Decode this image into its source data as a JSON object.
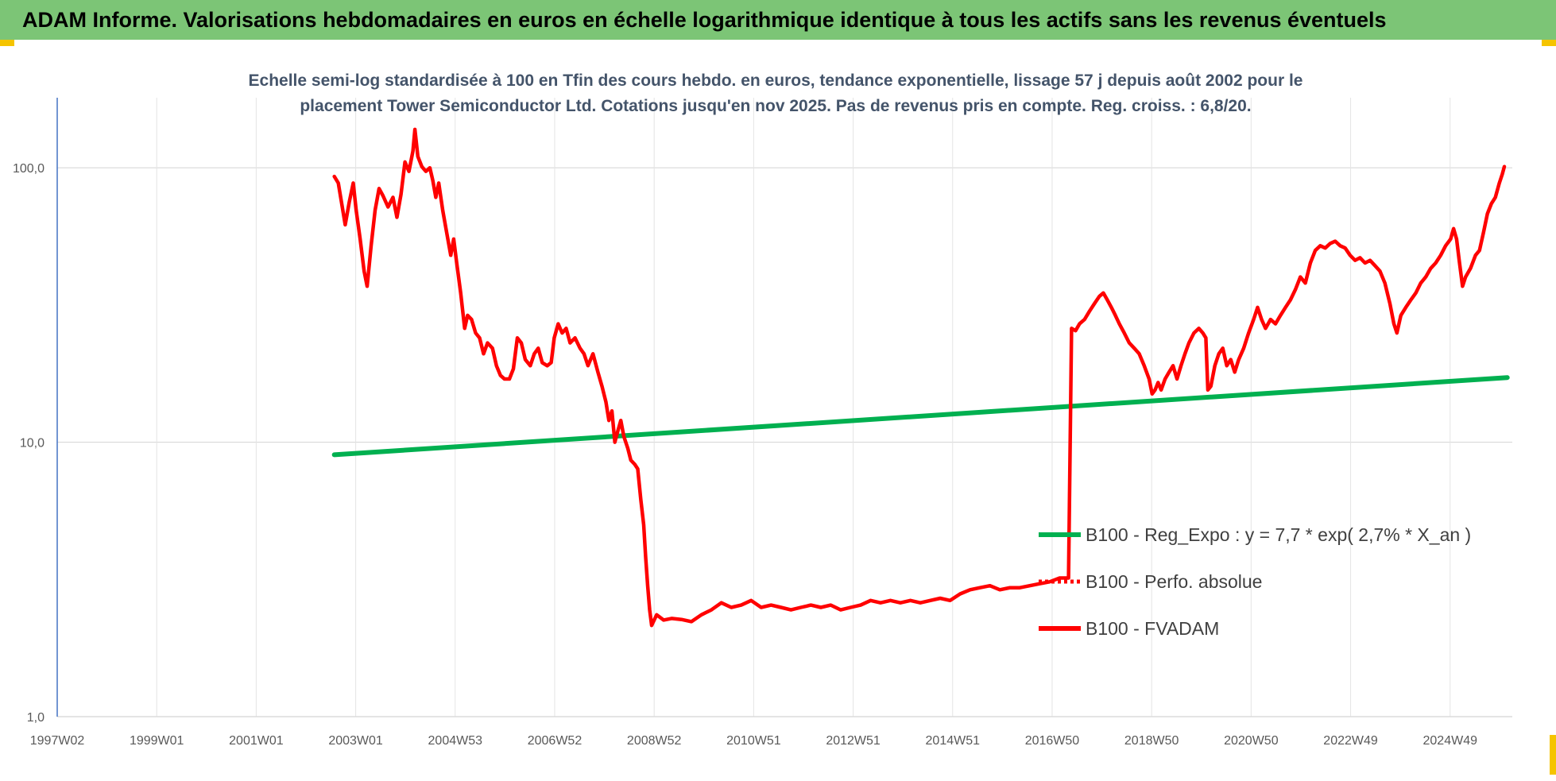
{
  "header": {
    "title": "ADAM Informe. Valorisations hebdomadaires en euros en échelle logarithmique identique à tous les actifs sans les revenus éventuels"
  },
  "colors": {
    "banner": "#7cc576",
    "accent_corner": "#f5c400",
    "series_fvadam": "#ff0000",
    "series_reg": "#00b050",
    "grid": "#d9d9d9",
    "axis": "#4472c4"
  },
  "chart_data": {
    "type": "line",
    "title_lines": [
      "Echelle semi-log standardisée à 100 en Tfin des cours hebdo. en euros, tendance exponentielle, lissage 57 j depuis août 2002 pour le",
      "placement Tower Semiconductor Ltd. Cotations jusqu'en nov 2025. Pas de revenus pris en compte. Reg. croiss. : 6,8/20."
    ],
    "y_scale": "log",
    "ylim": [
      1,
      180
    ],
    "xlim": [
      1997.05,
      2026.3
    ],
    "y_ticks": [
      {
        "value": 1,
        "label": "1,0"
      },
      {
        "value": 10,
        "label": "10,0"
      },
      {
        "value": 100,
        "label": "100,0"
      }
    ],
    "x_ticks": [
      {
        "value": 1997.05,
        "label": "1997W02"
      },
      {
        "value": 1999.05,
        "label": "1999W01"
      },
      {
        "value": 2001.05,
        "label": "2001W01"
      },
      {
        "value": 2003.05,
        "label": "2003W01"
      },
      {
        "value": 2005.05,
        "label": "2004W53"
      },
      {
        "value": 2007.05,
        "label": "2006W52"
      },
      {
        "value": 2009.05,
        "label": "2008W52"
      },
      {
        "value": 2011.05,
        "label": "2010W51"
      },
      {
        "value": 2013.05,
        "label": "2012W51"
      },
      {
        "value": 2015.05,
        "label": "2014W51"
      },
      {
        "value": 2017.05,
        "label": "2016W50"
      },
      {
        "value": 2019.05,
        "label": "2018W50"
      },
      {
        "value": 2021.05,
        "label": "2020W50"
      },
      {
        "value": 2023.05,
        "label": "2022W49"
      },
      {
        "value": 2025.05,
        "label": "2024W49"
      }
    ],
    "grid": true,
    "legend_position": "center-right",
    "series": [
      {
        "name": "B100 - Reg_Expo : y = 7,7 * exp( 2,7% *  X_an )",
        "color": "#00b050",
        "style": "solid",
        "points": [
          [
            2002.62,
            9.0
          ],
          [
            2026.2,
            17.2
          ]
        ]
      },
      {
        "name": "B100 - Perfo. absolue",
        "color": "#ff0000",
        "style": "dotted",
        "points": []
      },
      {
        "name": "B100 - FVADAM",
        "color": "#ff0000",
        "style": "solid",
        "points": [
          [
            2002.62,
            93
          ],
          [
            2002.7,
            88
          ],
          [
            2002.78,
            72
          ],
          [
            2002.84,
            62
          ],
          [
            2002.92,
            75
          ],
          [
            2003.0,
            88
          ],
          [
            2003.06,
            70
          ],
          [
            2003.14,
            55
          ],
          [
            2003.22,
            42
          ],
          [
            2003.28,
            37
          ],
          [
            2003.36,
            52
          ],
          [
            2003.44,
            70
          ],
          [
            2003.52,
            84
          ],
          [
            2003.6,
            79
          ],
          [
            2003.7,
            72
          ],
          [
            2003.8,
            78
          ],
          [
            2003.88,
            66
          ],
          [
            2003.96,
            80
          ],
          [
            2004.04,
            105
          ],
          [
            2004.12,
            97
          ],
          [
            2004.2,
            115
          ],
          [
            2004.24,
            138
          ],
          [
            2004.3,
            110
          ],
          [
            2004.38,
            101
          ],
          [
            2004.46,
            97
          ],
          [
            2004.54,
            100
          ],
          [
            2004.6,
            90
          ],
          [
            2004.66,
            78
          ],
          [
            2004.72,
            88
          ],
          [
            2004.8,
            70
          ],
          [
            2004.88,
            58
          ],
          [
            2004.96,
            48
          ],
          [
            2005.02,
            55
          ],
          [
            2005.08,
            45
          ],
          [
            2005.16,
            35
          ],
          [
            2005.24,
            26
          ],
          [
            2005.3,
            29
          ],
          [
            2005.38,
            28
          ],
          [
            2005.46,
            25
          ],
          [
            2005.54,
            24
          ],
          [
            2005.62,
            21
          ],
          [
            2005.7,
            23
          ],
          [
            2005.8,
            22
          ],
          [
            2005.88,
            19
          ],
          [
            2005.96,
            17.5
          ],
          [
            2006.04,
            17
          ],
          [
            2006.14,
            17
          ],
          [
            2006.22,
            18.5
          ],
          [
            2006.3,
            24
          ],
          [
            2006.38,
            23
          ],
          [
            2006.46,
            20
          ],
          [
            2006.56,
            19
          ],
          [
            2006.64,
            21
          ],
          [
            2006.72,
            22
          ],
          [
            2006.8,
            19.5
          ],
          [
            2006.9,
            19
          ],
          [
            2006.98,
            19.5
          ],
          [
            2007.04,
            24
          ],
          [
            2007.12,
            27
          ],
          [
            2007.2,
            25
          ],
          [
            2007.28,
            26
          ],
          [
            2007.36,
            23
          ],
          [
            2007.46,
            24
          ],
          [
            2007.56,
            22
          ],
          [
            2007.64,
            21
          ],
          [
            2007.72,
            19
          ],
          [
            2007.82,
            21
          ],
          [
            2007.92,
            18
          ],
          [
            2008.0,
            16
          ],
          [
            2008.08,
            14
          ],
          [
            2008.14,
            12
          ],
          [
            2008.2,
            13
          ],
          [
            2008.26,
            10
          ],
          [
            2008.32,
            11
          ],
          [
            2008.38,
            12
          ],
          [
            2008.44,
            10.5
          ],
          [
            2008.52,
            9.5
          ],
          [
            2008.58,
            8.6
          ],
          [
            2008.66,
            8.3
          ],
          [
            2008.72,
            8.0
          ],
          [
            2008.78,
            6.2
          ],
          [
            2008.84,
            5.0
          ],
          [
            2008.88,
            3.8
          ],
          [
            2008.92,
            3.0
          ],
          [
            2008.96,
            2.45
          ],
          [
            2009.0,
            2.15
          ],
          [
            2009.1,
            2.35
          ],
          [
            2009.24,
            2.25
          ],
          [
            2009.4,
            2.28
          ],
          [
            2009.6,
            2.26
          ],
          [
            2009.8,
            2.22
          ],
          [
            2010.0,
            2.35
          ],
          [
            2010.2,
            2.45
          ],
          [
            2010.4,
            2.6
          ],
          [
            2010.6,
            2.5
          ],
          [
            2010.8,
            2.55
          ],
          [
            2011.0,
            2.65
          ],
          [
            2011.2,
            2.5
          ],
          [
            2011.4,
            2.55
          ],
          [
            2011.6,
            2.5
          ],
          [
            2011.8,
            2.45
          ],
          [
            2012.0,
            2.5
          ],
          [
            2012.2,
            2.55
          ],
          [
            2012.4,
            2.5
          ],
          [
            2012.6,
            2.55
          ],
          [
            2012.8,
            2.45
          ],
          [
            2013.0,
            2.5
          ],
          [
            2013.2,
            2.55
          ],
          [
            2013.4,
            2.65
          ],
          [
            2013.6,
            2.6
          ],
          [
            2013.8,
            2.65
          ],
          [
            2014.0,
            2.6
          ],
          [
            2014.2,
            2.65
          ],
          [
            2014.4,
            2.6
          ],
          [
            2014.6,
            2.65
          ],
          [
            2014.8,
            2.7
          ],
          [
            2015.0,
            2.65
          ],
          [
            2015.2,
            2.8
          ],
          [
            2015.4,
            2.9
          ],
          [
            2015.6,
            2.95
          ],
          [
            2015.8,
            3.0
          ],
          [
            2016.0,
            2.9
          ],
          [
            2016.2,
            2.95
          ],
          [
            2016.4,
            2.95
          ],
          [
            2016.6,
            3.0
          ],
          [
            2016.8,
            3.05
          ],
          [
            2017.0,
            3.1
          ],
          [
            2017.2,
            3.2
          ],
          [
            2017.38,
            3.2
          ],
          [
            2017.44,
            26
          ],
          [
            2017.52,
            25.5
          ],
          [
            2017.6,
            27
          ],
          [
            2017.7,
            28
          ],
          [
            2017.8,
            30
          ],
          [
            2017.9,
            32
          ],
          [
            2018.0,
            34
          ],
          [
            2018.08,
            35
          ],
          [
            2018.16,
            33
          ],
          [
            2018.24,
            31
          ],
          [
            2018.32,
            29
          ],
          [
            2018.4,
            27
          ],
          [
            2018.5,
            25
          ],
          [
            2018.6,
            23
          ],
          [
            2018.7,
            22
          ],
          [
            2018.8,
            21
          ],
          [
            2018.9,
            19
          ],
          [
            2019.0,
            17
          ],
          [
            2019.06,
            15
          ],
          [
            2019.12,
            15.5
          ],
          [
            2019.18,
            16.5
          ],
          [
            2019.24,
            15.5
          ],
          [
            2019.32,
            17
          ],
          [
            2019.4,
            18
          ],
          [
            2019.48,
            19
          ],
          [
            2019.56,
            17
          ],
          [
            2019.64,
            19
          ],
          [
            2019.72,
            21
          ],
          [
            2019.8,
            23
          ],
          [
            2019.9,
            25
          ],
          [
            2020.0,
            26
          ],
          [
            2020.08,
            25
          ],
          [
            2020.14,
            24
          ],
          [
            2020.18,
            15.5
          ],
          [
            2020.24,
            16
          ],
          [
            2020.32,
            19
          ],
          [
            2020.4,
            21
          ],
          [
            2020.48,
            22
          ],
          [
            2020.56,
            19
          ],
          [
            2020.64,
            20
          ],
          [
            2020.72,
            18
          ],
          [
            2020.8,
            20
          ],
          [
            2020.9,
            22
          ],
          [
            2021.0,
            25
          ],
          [
            2021.1,
            28
          ],
          [
            2021.18,
            31
          ],
          [
            2021.26,
            28
          ],
          [
            2021.34,
            26
          ],
          [
            2021.44,
            28
          ],
          [
            2021.54,
            27
          ],
          [
            2021.64,
            29
          ],
          [
            2021.74,
            31
          ],
          [
            2021.84,
            33
          ],
          [
            2021.94,
            36
          ],
          [
            2022.04,
            40
          ],
          [
            2022.14,
            38
          ],
          [
            2022.24,
            45
          ],
          [
            2022.34,
            50
          ],
          [
            2022.44,
            52
          ],
          [
            2022.54,
            51
          ],
          [
            2022.64,
            53
          ],
          [
            2022.74,
            54
          ],
          [
            2022.84,
            52
          ],
          [
            2022.94,
            51
          ],
          [
            2023.04,
            48
          ],
          [
            2023.14,
            46
          ],
          [
            2023.24,
            47
          ],
          [
            2023.34,
            45
          ],
          [
            2023.44,
            46
          ],
          [
            2023.54,
            44
          ],
          [
            2023.64,
            42
          ],
          [
            2023.74,
            38
          ],
          [
            2023.84,
            32
          ],
          [
            2023.92,
            27
          ],
          [
            2023.98,
            25
          ],
          [
            2024.06,
            29
          ],
          [
            2024.16,
            31
          ],
          [
            2024.26,
            33
          ],
          [
            2024.36,
            35
          ],
          [
            2024.46,
            38
          ],
          [
            2024.56,
            40
          ],
          [
            2024.66,
            43
          ],
          [
            2024.76,
            45
          ],
          [
            2024.86,
            48
          ],
          [
            2024.96,
            52
          ],
          [
            2025.06,
            55
          ],
          [
            2025.12,
            60
          ],
          [
            2025.18,
            55
          ],
          [
            2025.24,
            45
          ],
          [
            2025.3,
            37
          ],
          [
            2025.36,
            40
          ],
          [
            2025.46,
            43
          ],
          [
            2025.56,
            48
          ],
          [
            2025.64,
            50
          ],
          [
            2025.72,
            58
          ],
          [
            2025.8,
            68
          ],
          [
            2025.88,
            74
          ],
          [
            2025.96,
            78
          ],
          [
            2026.04,
            88
          ],
          [
            2026.1,
            95
          ],
          [
            2026.14,
            101
          ]
        ]
      }
    ]
  }
}
